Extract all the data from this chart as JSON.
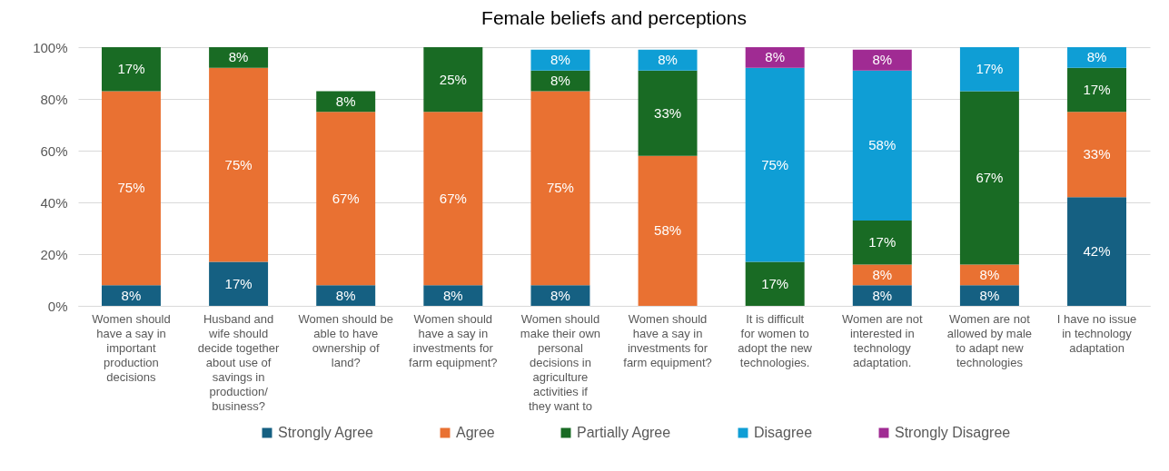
{
  "chart_data": {
    "type": "bar",
    "title": "Female beliefs and perceptions",
    "stacked": true,
    "grid": "y",
    "legend": "bottom",
    "categories": [
      "Women should have a say in important production decisions",
      "Husband and wife should decide together about use of savings in production/ business?",
      "Women should be able to have ownership of land?",
      "Women should have a say in investments for farm equipment?",
      "Women should make their own personal decisions in agriculture activities if they want to",
      "Women should have a say in investments for farm equipment?",
      "It is difficult for women to adopt the new technologies.",
      "Women are not interested in technology adaptation.",
      "Women are not allowed by male to adapt new technologies",
      "I have no issue in technology adaptation"
    ],
    "ylim": [
      0,
      100
    ],
    "yticks": [
      {
        "value": 0,
        "label": "0%"
      },
      {
        "value": 20,
        "label": "20%"
      },
      {
        "value": 40,
        "label": "40%"
      },
      {
        "value": 60,
        "label": "60%"
      },
      {
        "value": 80,
        "label": "80%"
      },
      {
        "value": 100,
        "label": "100%"
      }
    ],
    "series": [
      {
        "name": "Strongly Agree",
        "color": "#156082",
        "values": [
          8,
          17,
          8,
          8,
          8,
          null,
          null,
          8,
          8,
          42
        ],
        "value_labels": [
          "8%",
          "17%",
          "8%",
          "8%",
          "8%",
          null,
          null,
          "8%",
          "8%",
          "42%"
        ]
      },
      {
        "name": "Agree",
        "color": "#e97132",
        "values": [
          75,
          75,
          67,
          67,
          75,
          58,
          null,
          8,
          8,
          33
        ],
        "value_labels": [
          "75%",
          "75%",
          "67%",
          "67%",
          "75%",
          "58%",
          null,
          "8%",
          "8%",
          "33%"
        ]
      },
      {
        "name": "Partially Agree",
        "color": "#196b24",
        "values": [
          17,
          8,
          8,
          25,
          8,
          33,
          17,
          17,
          67,
          17
        ],
        "value_labels": [
          "17%",
          "8%",
          "8%",
          "25%",
          "8%",
          "33%",
          "17%",
          "17%",
          "67%",
          "17%"
        ]
      },
      {
        "name": "Disagree",
        "color": "#0f9ed5",
        "values": [
          null,
          null,
          null,
          null,
          8,
          8,
          75,
          58,
          17,
          8
        ],
        "value_labels": [
          null,
          null,
          null,
          null,
          "8%",
          "8%",
          "75%",
          "58%",
          "17%",
          "8%"
        ]
      },
      {
        "name": "Strongly Disagree",
        "color": "#a02b93",
        "values": [
          null,
          null,
          null,
          null,
          null,
          null,
          8,
          8,
          null,
          null
        ],
        "value_labels": [
          null,
          null,
          null,
          null,
          null,
          null,
          "8%",
          "8%",
          null,
          null
        ]
      }
    ]
  }
}
